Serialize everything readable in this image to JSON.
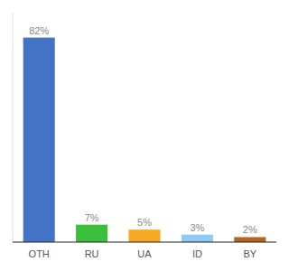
{
  "chart_data": {
    "type": "bar",
    "categories": [
      "OTH",
      "RU",
      "UA",
      "ID",
      "BY"
    ],
    "values": [
      82,
      7,
      5,
      3,
      2
    ],
    "value_labels": [
      "82%",
      "7%",
      "5%",
      "3%",
      "2%"
    ],
    "colors": [
      "#4472C4",
      "#3DBE3D",
      "#F9A825",
      "#90CAF9",
      "#B5651D"
    ],
    "ylim": [
      0,
      92
    ],
    "data_labels": true,
    "tick_labels": "x",
    "grid": false
  }
}
